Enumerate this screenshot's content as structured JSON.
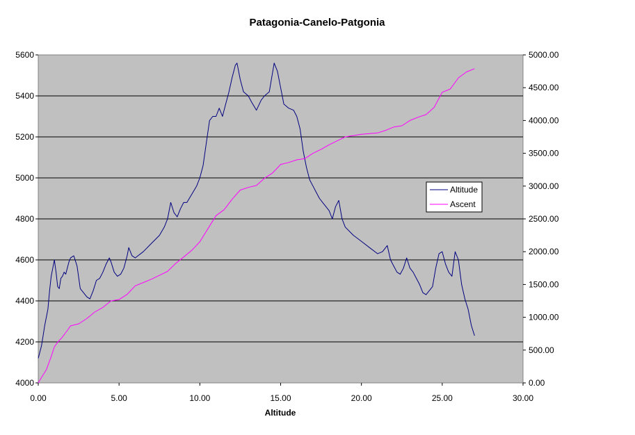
{
  "chart_data": {
    "type": "line",
    "title": "Patagonia-Canelo-Patgonia",
    "xlabel": "Altitude",
    "ylabel": "",
    "y2label": "",
    "xlim": [
      0,
      30
    ],
    "ylim": [
      4000,
      5600
    ],
    "y2lim": [
      0,
      5000
    ],
    "x_ticks": [
      "0.00",
      "5.00",
      "10.00",
      "15.00",
      "20.00",
      "25.00",
      "30.00"
    ],
    "y_ticks": [
      "4000",
      "4200",
      "4400",
      "4600",
      "4800",
      "5000",
      "5200",
      "5400",
      "5600"
    ],
    "y2_ticks": [
      "0.00",
      "500.00",
      "1000.00",
      "1500.00",
      "2000.00",
      "2500.00",
      "3000.00",
      "3500.00",
      "4000.00",
      "4500.00",
      "5000.00"
    ],
    "grid": true,
    "legend_position": "right",
    "plot_background": "#C0C0C0",
    "series": [
      {
        "name": "Altitude",
        "axis": "left",
        "color": "#000080",
        "x": [
          0.0,
          0.1,
          0.2,
          0.3,
          0.4,
          0.5,
          0.6,
          0.7,
          0.8,
          0.9,
          1.0,
          1.1,
          1.2,
          1.3,
          1.4,
          1.5,
          1.6,
          1.7,
          1.8,
          1.9,
          2.0,
          2.2,
          2.4,
          2.6,
          2.8,
          3.0,
          3.2,
          3.4,
          3.6,
          3.8,
          4.0,
          4.2,
          4.4,
          4.5,
          4.7,
          4.9,
          5.1,
          5.3,
          5.5,
          5.6,
          5.8,
          6.0,
          6.5,
          7.0,
          7.5,
          7.8,
          8.0,
          8.2,
          8.4,
          8.6,
          8.8,
          9.0,
          9.2,
          9.5,
          9.8,
          10.0,
          10.2,
          10.4,
          10.6,
          10.8,
          11.0,
          11.2,
          11.4,
          11.6,
          11.8,
          12.0,
          12.2,
          12.3,
          12.5,
          12.7,
          13.0,
          13.2,
          13.5,
          13.8,
          14.0,
          14.3,
          14.6,
          14.8,
          15.0,
          15.2,
          15.5,
          15.8,
          16.0,
          16.2,
          16.4,
          16.6,
          16.8,
          17.0,
          17.2,
          17.4,
          17.6,
          17.8,
          18.0,
          18.2,
          18.4,
          18.6,
          18.8,
          19.0,
          19.5,
          20.0,
          20.5,
          21.0,
          21.3,
          21.6,
          21.8,
          22.0,
          22.2,
          22.4,
          22.6,
          22.8,
          23.0,
          23.2,
          23.4,
          23.6,
          23.8,
          24.0,
          24.2,
          24.4,
          24.6,
          24.8,
          25.0,
          25.2,
          25.4,
          25.6,
          25.8,
          26.0,
          26.2,
          26.4,
          26.6,
          26.8,
          27.0
        ],
        "y": [
          4120,
          4150,
          4180,
          4230,
          4280,
          4320,
          4360,
          4450,
          4520,
          4560,
          4600,
          4540,
          4470,
          4460,
          4510,
          4520,
          4540,
          4530,
          4560,
          4590,
          4610,
          4620,
          4570,
          4460,
          4440,
          4420,
          4410,
          4450,
          4500,
          4510,
          4540,
          4580,
          4610,
          4590,
          4540,
          4520,
          4530,
          4560,
          4620,
          4660,
          4620,
          4610,
          4640,
          4680,
          4720,
          4760,
          4800,
          4880,
          4830,
          4810,
          4850,
          4880,
          4880,
          4920,
          4960,
          5000,
          5060,
          5170,
          5280,
          5300,
          5300,
          5340,
          5300,
          5360,
          5420,
          5490,
          5550,
          5560,
          5480,
          5420,
          5400,
          5370,
          5330,
          5380,
          5400,
          5420,
          5560,
          5520,
          5440,
          5360,
          5340,
          5330,
          5300,
          5240,
          5130,
          5050,
          4990,
          4960,
          4930,
          4900,
          4880,
          4860,
          4840,
          4800,
          4860,
          4890,
          4800,
          4760,
          4720,
          4690,
          4660,
          4630,
          4640,
          4670,
          4600,
          4570,
          4540,
          4530,
          4560,
          4610,
          4560,
          4540,
          4510,
          4480,
          4440,
          4430,
          4450,
          4470,
          4560,
          4630,
          4640,
          4580,
          4540,
          4520,
          4640,
          4600,
          4480,
          4410,
          4360,
          4280,
          4230
        ],
        "legend_label": "Altitude"
      },
      {
        "name": "Ascent",
        "axis": "right",
        "color": "#FF00FF",
        "x": [
          0.0,
          0.2,
          0.5,
          0.8,
          1.0,
          1.2,
          1.5,
          1.8,
          2.0,
          2.5,
          3.0,
          3.5,
          4.0,
          4.5,
          5.0,
          5.5,
          6.0,
          6.5,
          7.0,
          7.5,
          8.0,
          8.5,
          9.0,
          9.5,
          10.0,
          10.5,
          11.0,
          11.5,
          12.0,
          12.5,
          13.0,
          13.5,
          14.0,
          14.5,
          15.0,
          15.5,
          16.0,
          16.5,
          17.0,
          17.5,
          18.0,
          18.5,
          19.0,
          19.5,
          20.0,
          20.5,
          21.0,
          21.5,
          22.0,
          22.5,
          23.0,
          23.5,
          24.0,
          24.5,
          25.0,
          25.5,
          26.0,
          26.5,
          27.0
        ],
        "y": [
          0,
          80,
          200,
          400,
          550,
          620,
          700,
          800,
          870,
          900,
          980,
          1080,
          1150,
          1250,
          1270,
          1350,
          1480,
          1530,
          1580,
          1640,
          1700,
          1820,
          1920,
          2020,
          2150,
          2350,
          2550,
          2640,
          2800,
          2940,
          2980,
          3010,
          3120,
          3200,
          3330,
          3360,
          3400,
          3420,
          3500,
          3560,
          3630,
          3690,
          3750,
          3770,
          3790,
          3800,
          3810,
          3850,
          3900,
          3920,
          4000,
          4050,
          4090,
          4200,
          4430,
          4480,
          4650,
          4740,
          4790
        ],
        "legend_label": "Ascent"
      }
    ]
  }
}
